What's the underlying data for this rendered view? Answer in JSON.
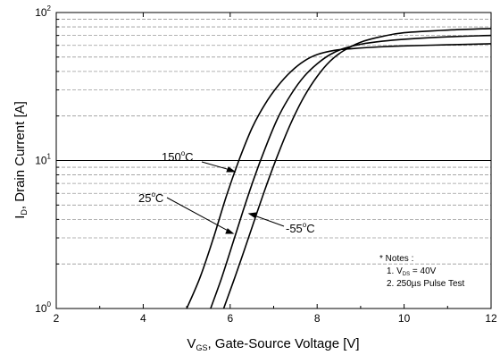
{
  "chart_data": {
    "type": "line",
    "title": "",
    "xlabel": {
      "main": "V",
      "sub": "GS",
      "rest": ", Gate-Source Voltage [V]"
    },
    "ylabel": {
      "main": "I",
      "sub": "D",
      "rest": ", Drain Current [A]"
    },
    "x_scale": "linear",
    "y_scale": "log",
    "xlim": [
      2,
      12
    ],
    "ylim": [
      1,
      100
    ],
    "x_ticks": [
      "2",
      "4",
      "6",
      "8",
      "10",
      "12"
    ],
    "y_ticks": [
      {
        "base": "10",
        "exp": "0"
      },
      {
        "base": "10",
        "exp": "1"
      },
      {
        "base": "10",
        "exp": "2"
      }
    ],
    "grid": "dashed horizontal at log minor ticks",
    "series": [
      {
        "name": "150°C",
        "label": {
          "pre": "150",
          "sup": "o",
          "post": "C"
        },
        "x": [
          5.0,
          5.3,
          5.6,
          5.9,
          6.2,
          6.5,
          6.8,
          7.1,
          7.4,
          7.7,
          8.0,
          8.4,
          8.8,
          9.4,
          10.0,
          11.0,
          12.0
        ],
        "y": [
          1.0,
          1.6,
          2.9,
          5.6,
          10,
          16.5,
          24,
          32,
          40,
          47,
          52,
          55.5,
          57,
          58.5,
          59.5,
          60.5,
          61.5
        ]
      },
      {
        "name": "25°C",
        "label": {
          "pre": "25",
          "sup": "o",
          "post": "C"
        },
        "x": [
          5.55,
          5.8,
          6.05,
          6.3,
          6.55,
          6.8,
          7.1,
          7.4,
          7.7,
          8.0,
          8.3,
          8.6,
          9.0,
          9.5,
          10.0,
          11.0,
          12.0
        ],
        "y": [
          1.0,
          1.6,
          2.7,
          4.6,
          7.6,
          12,
          19.5,
          28,
          37,
          45,
          52,
          57,
          61,
          64,
          66,
          68.5,
          70
        ]
      },
      {
        "name": "-55°C",
        "label": {
          "pre": "-55",
          "sup": "o",
          "post": "C"
        },
        "x": [
          5.85,
          6.1,
          6.35,
          6.6,
          6.85,
          7.1,
          7.4,
          7.7,
          8.0,
          8.3,
          8.6,
          9.0,
          9.5,
          10.0,
          11.0,
          12.0
        ],
        "y": [
          1.0,
          1.6,
          2.6,
          4.3,
          7.0,
          11,
          18,
          27,
          37,
          47,
          55,
          63,
          69,
          73,
          76,
          78
        ]
      }
    ],
    "notes": [
      {
        "text": "* Notes :"
      },
      {
        "pre": "1. V",
        "sub": "DS",
        "post": " = 40V"
      },
      {
        "text": "2. 250µs Pulse Test"
      }
    ]
  }
}
